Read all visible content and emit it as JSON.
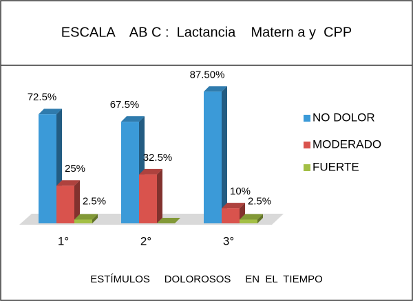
{
  "chart_data": {
    "type": "bar3d",
    "title": "ESCALA    AB C :  Lactancia    Matern a y  CPP",
    "x_label": "ESTÍMULOS     DOLOROSOS     EN  EL  TIEMPO",
    "categories": [
      "1°",
      "2°",
      "3°"
    ],
    "series": [
      {
        "name": "NO DOLOR",
        "color": "#3b9ad8",
        "values": [
          72.5,
          67.5,
          87.5
        ],
        "value_labels": [
          "72.5%",
          "67.5%",
          "87.50%"
        ]
      },
      {
        "name": "MODERADO",
        "color": "#d9534d",
        "values": [
          25,
          32.5,
          10
        ],
        "value_labels": [
          "25%",
          "32.5%",
          "10%"
        ]
      },
      {
        "name": "FUERTE",
        "color": "#a3bf45",
        "values": [
          2.5,
          0,
          2.5
        ],
        "value_labels": [
          "2.5%",
          null,
          "2.5%"
        ]
      }
    ],
    "ylim": [
      0,
      100
    ],
    "legend": "right"
  }
}
